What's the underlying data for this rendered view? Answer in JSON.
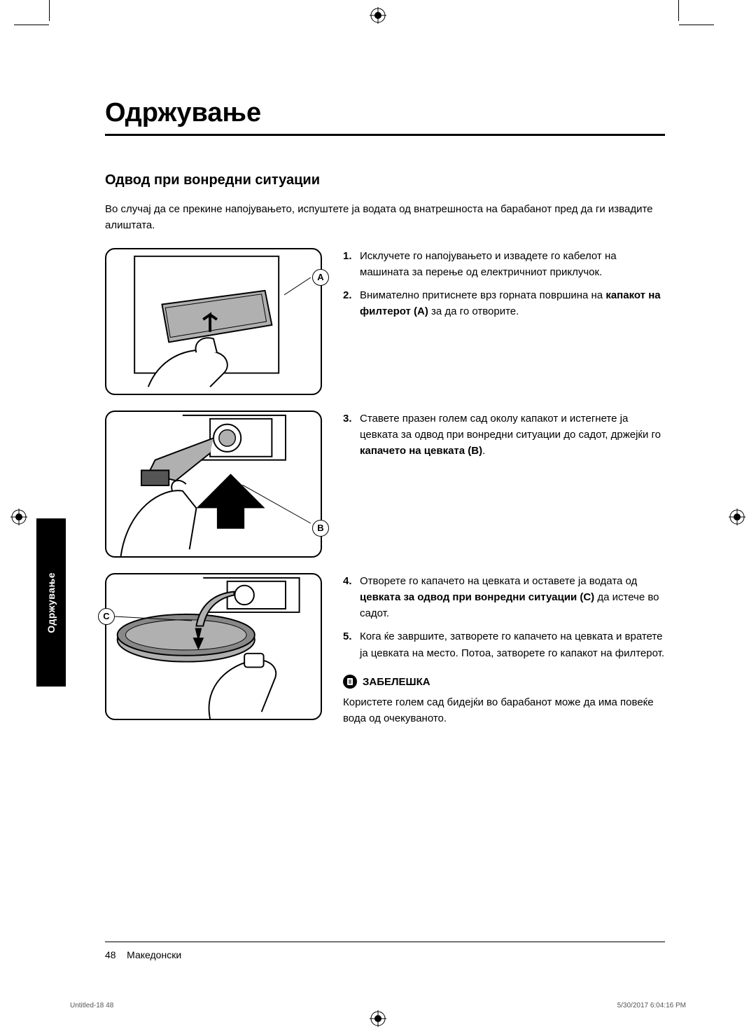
{
  "page_title": "Одржување",
  "section_title": "Одвод при вонредни ситуации",
  "intro": "Во случај да се прекине напојувањето, испуштете ја водата од внатрешноста на барабанот пред да ги извадите алиштата.",
  "steps_block1": [
    {
      "num": "1.",
      "text_parts": [
        "Исклучете го напојувањето и извадете го кабелот на машината за перење од електричниот приклучок."
      ]
    },
    {
      "num": "2.",
      "text_parts": [
        "Внимателно притиснете врз горната површина на ",
        {
          "bold": "капакот на филтерот (A)"
        },
        " за да го отворите."
      ]
    }
  ],
  "steps_block2": [
    {
      "num": "3.",
      "text_parts": [
        "Ставете празен голем сад околу капакот и истегнете ја цевката за одвод при вонредни ситуации до садот, држејќи го ",
        {
          "bold": "капачето на цевката (B)"
        },
        "."
      ]
    }
  ],
  "steps_block3": [
    {
      "num": "4.",
      "text_parts": [
        "Отворете го капачето на цевката и оставете ја водата од ",
        {
          "bold": "цевката за одвод при вонредни ситуации (C)"
        },
        " да истече во садот."
      ]
    },
    {
      "num": "5.",
      "text_parts": [
        "Кога ќе завршите, затворете го капачето на цевката и вратете ја цевката на место. Потоа, затворете го капакот на филтерот."
      ]
    }
  ],
  "note_label": "ЗАБЕЛЕШКА",
  "note_text": "Користете голем сад бидејќи во барабанот може да има повеќе вода од очекуваното.",
  "labels": {
    "A": "A",
    "B": "B",
    "C": "C"
  },
  "side_tab": "Одржување",
  "footer_page": "48",
  "footer_lang": "Македонски",
  "fineprint_left": "Untitled-18   48",
  "fineprint_right": "5/30/2017   6:04:16 PM",
  "colors": {
    "text": "#000000",
    "background": "#ffffff",
    "illustration_fill": "#b0b0b0",
    "side_tab_bg": "#000000",
    "side_tab_text": "#ffffff"
  }
}
